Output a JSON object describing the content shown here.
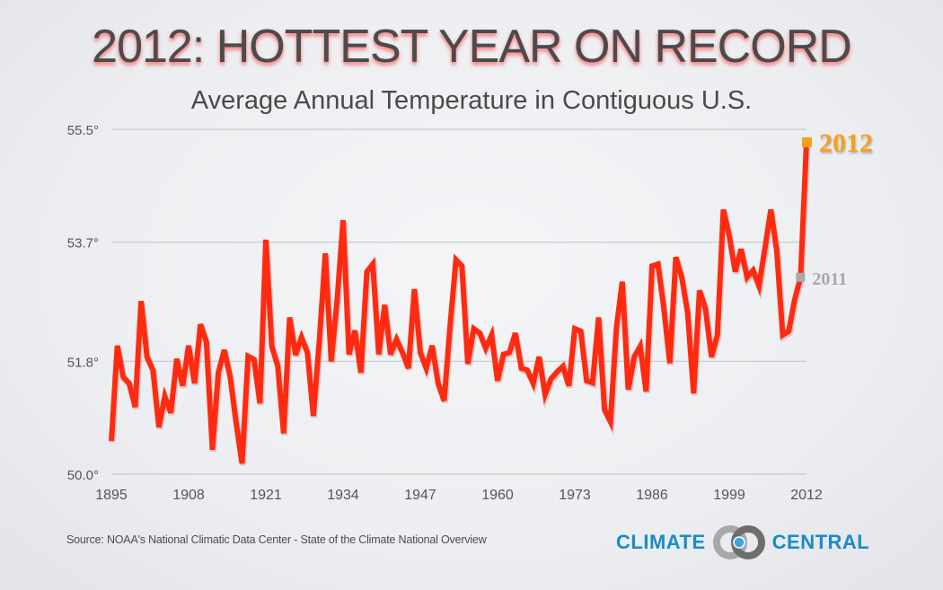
{
  "header": {
    "title": "2012: HOTTEST YEAR ON RECORD",
    "subtitle": "Average Annual Temperature in Contiguous U.S."
  },
  "footer": {
    "source": "Source: NOAA's National Climatic Data Center - State of the Climate National Overview",
    "logo_left": "CLIMATE",
    "logo_right": "CENTRAL"
  },
  "colors": {
    "line": "#ff2a10",
    "highlight_2012": "#f5a11c",
    "highlight_2011": "#a9a9a9",
    "grid": "#c8c8cc",
    "axis_text": "#555555",
    "logo_blue": "#1a8bc9"
  },
  "chart_data": {
    "type": "line",
    "title": "2012: HOTTEST YEAR ON RECORD",
    "subtitle": "Average Annual Temperature in Contiguous U.S.",
    "xlabel": "",
    "ylabel": "",
    "xlim": [
      1895,
      2012
    ],
    "ylim": [
      50.0,
      55.5
    ],
    "grid": true,
    "y_ticks": [
      50.0,
      51.8,
      53.7,
      55.5
    ],
    "y_tick_labels": [
      "50.0°",
      "51.8°",
      "53.7°",
      "55.5°"
    ],
    "x_ticks": [
      1895,
      1908,
      1921,
      1934,
      1947,
      1960,
      1973,
      1986,
      1999,
      2012
    ],
    "x_tick_labels": [
      "1895",
      "1908",
      "1921",
      "1934",
      "1947",
      "1960",
      "1973",
      "1986",
      "1999",
      "2012"
    ],
    "annotations": [
      {
        "year": 2012,
        "label": "2012",
        "value": 55.3
      },
      {
        "year": 2011,
        "label": "2011",
        "value": 53.14
      }
    ],
    "series": [
      {
        "name": "Average Annual Temperature (°F)",
        "x_start": 1895,
        "values": [
          50.53,
          52.05,
          51.55,
          51.45,
          51.07,
          52.76,
          51.87,
          51.66,
          50.75,
          51.24,
          50.98,
          51.84,
          51.41,
          52.05,
          51.45,
          52.39,
          52.11,
          50.39,
          51.62,
          51.98,
          51.55,
          50.82,
          50.17,
          51.88,
          51.83,
          51.13,
          53.74,
          52.04,
          51.73,
          50.65,
          52.5,
          51.9,
          52.18,
          51.94,
          50.93,
          52.11,
          53.52,
          51.8,
          52.78,
          54.05,
          51.91,
          52.29,
          51.62,
          53.23,
          53.35,
          51.91,
          52.7,
          51.91,
          52.15,
          51.94,
          51.69,
          52.95,
          51.94,
          51.69,
          52.05,
          51.45,
          51.17,
          52.36,
          53.42,
          53.32,
          51.76,
          52.32,
          52.25,
          52.01,
          52.22,
          51.49,
          51.91,
          51.94,
          52.25,
          51.69,
          51.66,
          51.45,
          51.87,
          51.27,
          51.52,
          51.63,
          51.72,
          51.41,
          52.32,
          52.28,
          51.49,
          51.46,
          52.5,
          51.03,
          50.84,
          52.33,
          53.07,
          51.35,
          51.87,
          52.04,
          51.32,
          53.32,
          53.35,
          52.64,
          51.77,
          53.46,
          53.14,
          52.57,
          51.29,
          52.93,
          52.64,
          51.87,
          52.22,
          54.22,
          53.8,
          53.23,
          53.59,
          53.14,
          53.25,
          53.0,
          53.6,
          54.22,
          53.56,
          52.22,
          52.28,
          52.78,
          53.14,
          55.3
        ]
      }
    ]
  }
}
